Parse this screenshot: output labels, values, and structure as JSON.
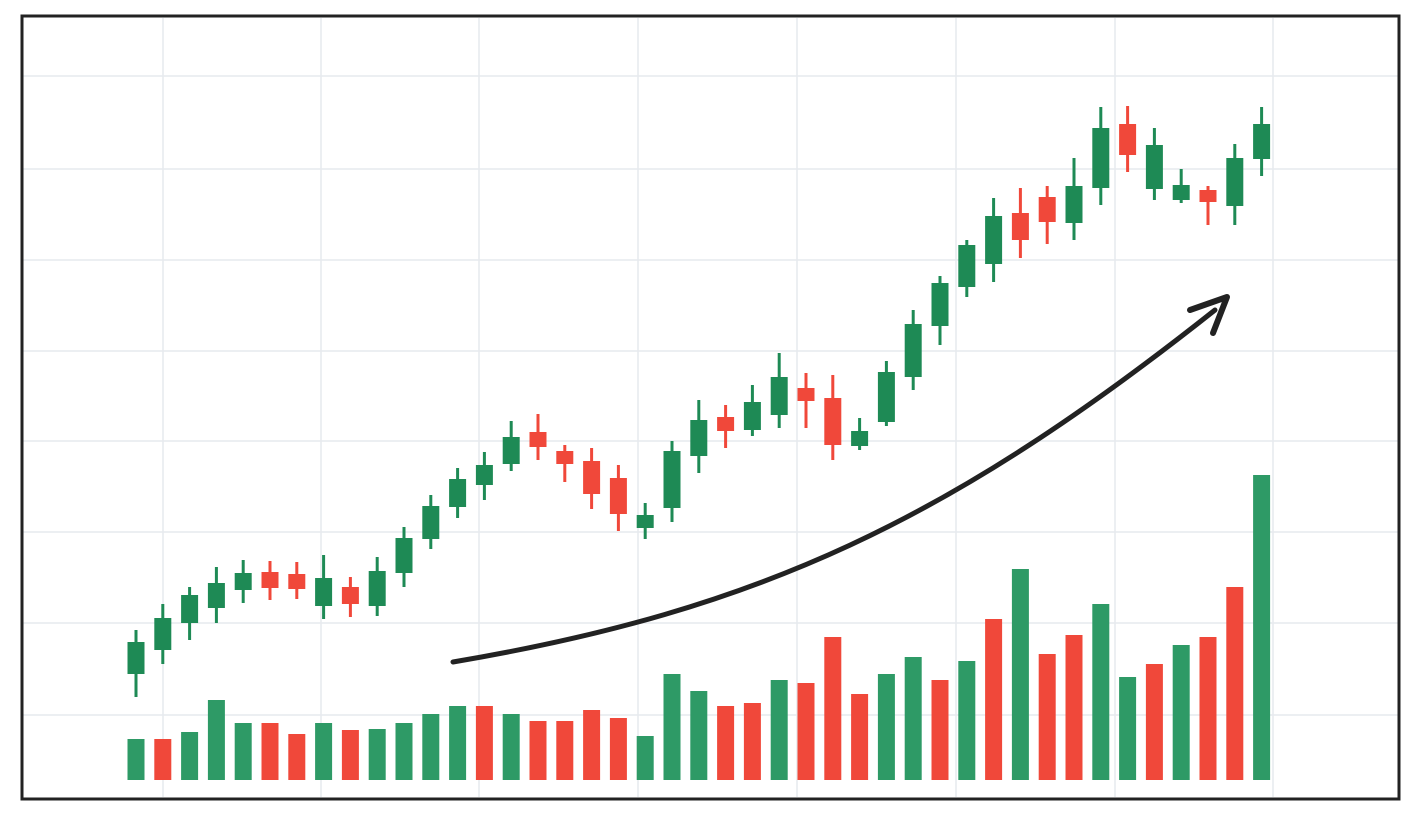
{
  "chart_data": {
    "type": "candlestick",
    "open": [
      125,
      149,
      176,
      191,
      209,
      227,
      225,
      193,
      212,
      193,
      226,
      260,
      292,
      314,
      335,
      367,
      348,
      338,
      321,
      271,
      291,
      343,
      382,
      369,
      384,
      411,
      401,
      353,
      377,
      422,
      473,
      512,
      535,
      586,
      602,
      576,
      611,
      675,
      610,
      599,
      609,
      593,
      640
    ],
    "high": [
      169,
      195,
      212,
      232,
      239,
      238,
      237,
      244,
      222,
      242,
      272,
      304,
      331,
      347,
      378,
      385,
      354,
      351,
      334,
      296,
      358,
      399,
      394,
      414,
      446,
      426,
      424,
      381,
      438,
      489,
      523,
      559,
      601,
      611,
      613,
      641,
      692,
      693,
      671,
      630,
      613,
      655,
      692
    ],
    "low": [
      102,
      135,
      159,
      176,
      196,
      199,
      200,
      180,
      182,
      183,
      212,
      250,
      281,
      299,
      328,
      339,
      317,
      290,
      268,
      260,
      277,
      326,
      351,
      363,
      371,
      371,
      339,
      349,
      373,
      409,
      454,
      502,
      517,
      541,
      555,
      559,
      594,
      627,
      599,
      596,
      574,
      574,
      623
    ],
    "close": [
      157,
      181,
      204,
      216,
      226,
      211,
      210,
      221,
      195,
      228,
      261,
      293,
      320,
      334,
      362,
      352,
      335,
      305,
      285,
      284,
      348,
      379,
      368,
      397,
      422,
      398,
      354,
      368,
      427,
      475,
      516,
      554,
      583,
      559,
      577,
      613,
      671,
      644,
      654,
      614,
      597,
      641,
      675
    ],
    "up_color": "#1e8a55",
    "down_color": "#f0483a",
    "ylim": [
      0,
      783
    ],
    "yticks": [
      84,
      176,
      267,
      358,
      448,
      539,
      630,
      723
    ],
    "grid": true,
    "volume": {
      "axis": "y2",
      "values": [
        41,
        41,
        48,
        80,
        57,
        57,
        46,
        57,
        50,
        51,
        57,
        66,
        74,
        74,
        66,
        59,
        59,
        70,
        62,
        44,
        106,
        89,
        74,
        77,
        100,
        97,
        143,
        86,
        106,
        123,
        100,
        119,
        161,
        211,
        126,
        145,
        176,
        103,
        116,
        135,
        143,
        193,
        305
      ],
      "colors": [
        "#2e9a66",
        "#f0483a",
        "#2e9a66",
        "#2e9a66",
        "#2e9a66",
        "#f0483a",
        "#f0483a",
        "#2e9a66",
        "#f0483a",
        "#2e9a66",
        "#2e9a66",
        "#2e9a66",
        "#2e9a66",
        "#f0483a",
        "#2e9a66",
        "#f0483a",
        "#f0483a",
        "#f0483a",
        "#f0483a",
        "#2e9a66",
        "#2e9a66",
        "#2e9a66",
        "#f0483a",
        "#f0483a",
        "#2e9a66",
        "#f0483a",
        "#f0483a",
        "#f0483a",
        "#2e9a66",
        "#2e9a66",
        "#f0483a",
        "#2e9a66",
        "#f0483a",
        "#2e9a66",
        "#f0483a",
        "#f0483a",
        "#2e9a66",
        "#2e9a66",
        "#f0483a",
        "#2e9a66",
        "#f0483a",
        "#f0483a",
        "#2e9a66"
      ]
    },
    "y2lim": [
      0,
      764
    ]
  }
}
